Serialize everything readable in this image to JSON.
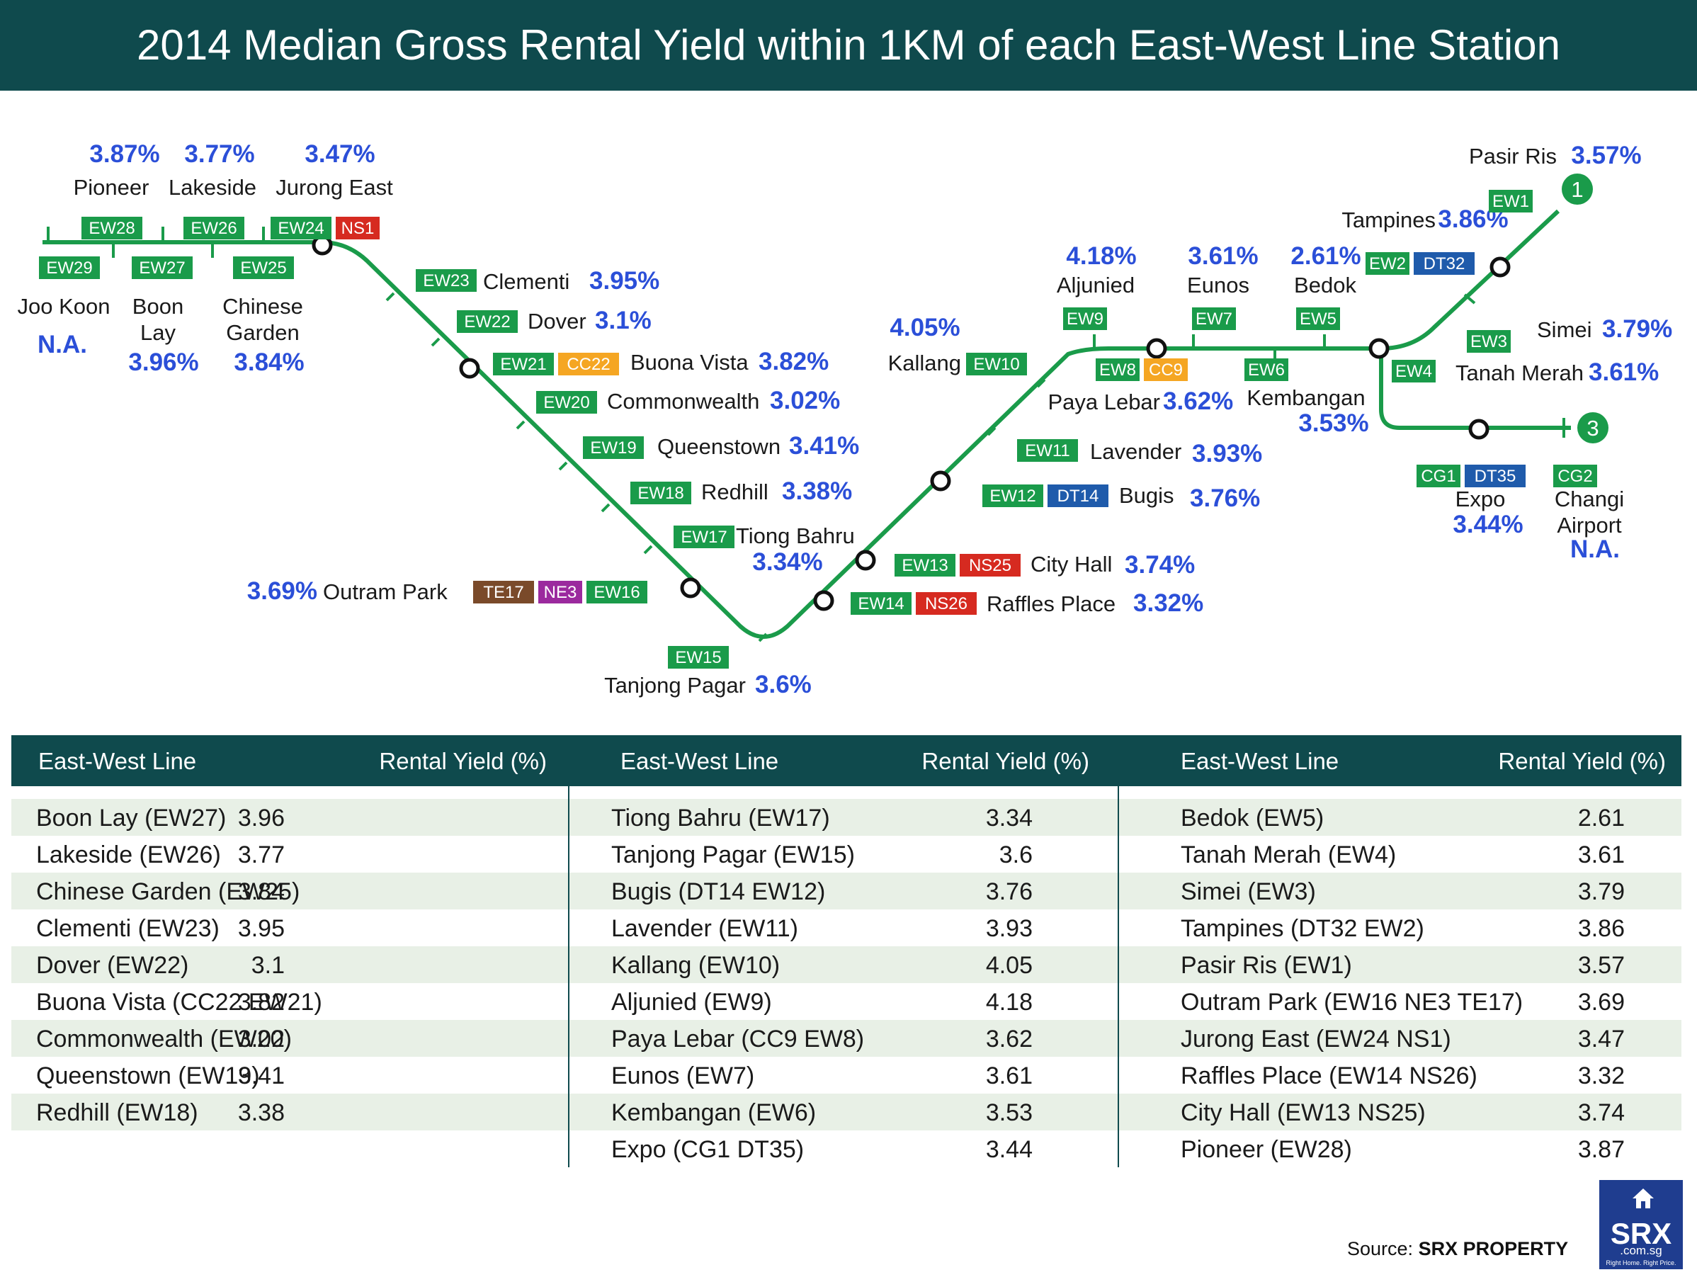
{
  "title": "2014 Median Gross Rental Yield within 1KM of each East-West Line Station",
  "colors": {
    "ew": "#1a9b4a",
    "ns": "#d62a20",
    "cc": "#f5a623",
    "dt": "#1f5bab",
    "ne": "#9b2a9e",
    "te": "#7a4a2a",
    "cg": "#1a9b4a",
    "pct": "#2b4fd8",
    "header": "#0f4a4d",
    "band": "#e8f0e6"
  },
  "stations": [
    {
      "name": "Joo Koon",
      "codes": [
        "EW29"
      ],
      "yield": "N.A."
    },
    {
      "name": "Pioneer",
      "codes": [
        "EW28"
      ],
      "yield": "3.87%"
    },
    {
      "name": "Boon Lay",
      "codes": [
        "EW27"
      ],
      "yield": "3.96%"
    },
    {
      "name": "Lakeside",
      "codes": [
        "EW26"
      ],
      "yield": "3.77%"
    },
    {
      "name": "Chinese Garden",
      "codes": [
        "EW25"
      ],
      "yield": "3.84%"
    },
    {
      "name": "Jurong East",
      "codes": [
        "EW24",
        "NS1"
      ],
      "yield": "3.47%"
    },
    {
      "name": "Clementi",
      "codes": [
        "EW23"
      ],
      "yield": "3.95%"
    },
    {
      "name": "Dover",
      "codes": [
        "EW22"
      ],
      "yield": "3.1%"
    },
    {
      "name": "Buona Vista",
      "codes": [
        "EW21",
        "CC22"
      ],
      "yield": "3.82%"
    },
    {
      "name": "Commonwealth",
      "codes": [
        "EW20"
      ],
      "yield": "3.02%"
    },
    {
      "name": "Queenstown",
      "codes": [
        "EW19"
      ],
      "yield": "3.41%"
    },
    {
      "name": "Redhill",
      "codes": [
        "EW18"
      ],
      "yield": "3.38%"
    },
    {
      "name": "Tiong Bahru",
      "codes": [
        "EW17"
      ],
      "yield": "3.34%"
    },
    {
      "name": "Outram Park",
      "codes": [
        "TE17",
        "NE3",
        "EW16"
      ],
      "yield": "3.69%"
    },
    {
      "name": "Tanjong Pagar",
      "codes": [
        "EW15"
      ],
      "yield": "3.6%"
    },
    {
      "name": "Raffles Place",
      "codes": [
        "EW14",
        "NS26"
      ],
      "yield": "3.32%"
    },
    {
      "name": "City Hall",
      "codes": [
        "EW13",
        "NS25"
      ],
      "yield": "3.74%"
    },
    {
      "name": "Bugis",
      "codes": [
        "EW12",
        "DT14"
      ],
      "yield": "3.76%"
    },
    {
      "name": "Lavender",
      "codes": [
        "EW11"
      ],
      "yield": "3.93%"
    },
    {
      "name": "Kallang",
      "codes": [
        "EW10"
      ],
      "yield": "4.05%"
    },
    {
      "name": "Aljunied",
      "codes": [
        "EW9"
      ],
      "yield": "4.18%"
    },
    {
      "name": "Paya Lebar",
      "codes": [
        "EW8",
        "CC9"
      ],
      "yield": "3.62%"
    },
    {
      "name": "Eunos",
      "codes": [
        "EW7"
      ],
      "yield": "3.61%"
    },
    {
      "name": "Kembangan",
      "codes": [
        "EW6"
      ],
      "yield": "3.53%"
    },
    {
      "name": "Bedok",
      "codes": [
        "EW5"
      ],
      "yield": "2.61%"
    },
    {
      "name": "Tanah Merah",
      "codes": [
        "EW4"
      ],
      "yield": "3.61%"
    },
    {
      "name": "Simei",
      "codes": [
        "EW3"
      ],
      "yield": "3.79%"
    },
    {
      "name": "Tampines",
      "codes": [
        "EW2",
        "DT32"
      ],
      "yield": "3.86%"
    },
    {
      "name": "Pasir Ris",
      "codes": [
        "EW1"
      ],
      "yield": "3.57%"
    },
    {
      "name": "Expo",
      "codes": [
        "CG1",
        "DT35"
      ],
      "yield": "3.44%"
    },
    {
      "name": "Changi Airport",
      "codes": [
        "CG2"
      ],
      "yield": "N.A."
    }
  ],
  "terminals": [
    "1",
    "3"
  ],
  "table": {
    "header_line": "East-West Line",
    "header_yield": "Rental Yield (%)",
    "columns": [
      [
        {
          "station": "Boon Lay (EW27)",
          "yield": "3.96"
        },
        {
          "station": "Lakeside (EW26)",
          "yield": "3.77"
        },
        {
          "station": "Chinese Garden (EW25)",
          "yield": "3.84"
        },
        {
          "station": "Clementi (EW23)",
          "yield": "3.95"
        },
        {
          "station": "Dover (EW22)",
          "yield": "3.1"
        },
        {
          "station": "Buona Vista (CC22 EW21)",
          "yield": "3.82"
        },
        {
          "station": "Commonwealth (EW20)",
          "yield": "3.02"
        },
        {
          "station": "Queenstown (EW19)",
          "yield": "3.41"
        },
        {
          "station": "Redhill (EW18)",
          "yield": "3.38"
        },
        {
          "station": "",
          "yield": ""
        }
      ],
      [
        {
          "station": "Tiong Bahru (EW17)",
          "yield": "3.34"
        },
        {
          "station": "Tanjong Pagar (EW15)",
          "yield": "3.6"
        },
        {
          "station": "Bugis (DT14 EW12)",
          "yield": "3.76"
        },
        {
          "station": "Lavender (EW11)",
          "yield": "3.93"
        },
        {
          "station": "Kallang (EW10)",
          "yield": "4.05"
        },
        {
          "station": "Aljunied (EW9)",
          "yield": "4.18"
        },
        {
          "station": "Paya Lebar (CC9 EW8)",
          "yield": "3.62"
        },
        {
          "station": "Eunos (EW7)",
          "yield": "3.61"
        },
        {
          "station": "Kembangan (EW6)",
          "yield": "3.53"
        },
        {
          "station": "Expo (CG1 DT35)",
          "yield": "3.44"
        }
      ],
      [
        {
          "station": "Bedok (EW5)",
          "yield": "2.61"
        },
        {
          "station": "Tanah Merah (EW4)",
          "yield": "3.61"
        },
        {
          "station": "Simei (EW3)",
          "yield": "3.79"
        },
        {
          "station": "Tampines (DT32 EW2)",
          "yield": "3.86"
        },
        {
          "station": "Pasir Ris (EW1)",
          "yield": "3.57"
        },
        {
          "station": "Outram Park (EW16 NE3 TE17)",
          "yield": "3.69"
        },
        {
          "station": "Jurong East (EW24 NS1)",
          "yield": "3.47"
        },
        {
          "station": "Raffles Place (EW14 NS26)",
          "yield": "3.32"
        },
        {
          "station": "City Hall (EW13 NS25)",
          "yield": "3.74"
        },
        {
          "station": "Pioneer (EW28)",
          "yield": "3.87"
        }
      ]
    ]
  },
  "source": {
    "prefix": "Source:",
    "name": "SRX PROPERTY"
  },
  "logo": {
    "brand": "SRX",
    "domain": ".com.sg",
    "tagline": "Right Home. Right Price.",
    "icon": "house-icon"
  }
}
